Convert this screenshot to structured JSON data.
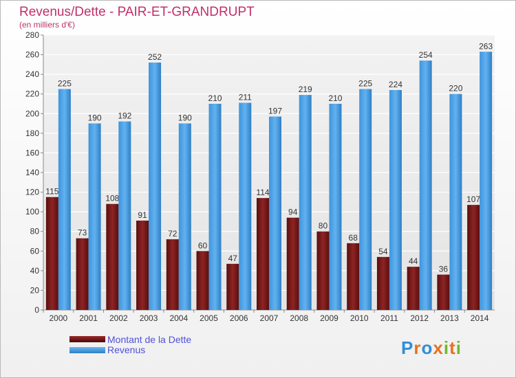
{
  "chart_data": {
    "type": "bar",
    "title": "Revenus/Dette - PAIR-ET-GRANDRUPT",
    "subtitle": "(en milliers d'€)",
    "xlabel": "",
    "ylabel": "",
    "ylim": [
      0,
      280
    ],
    "yticks": [
      0,
      20,
      40,
      60,
      80,
      100,
      120,
      140,
      160,
      180,
      200,
      220,
      240,
      260,
      280
    ],
    "grid": true,
    "categories": [
      "2000",
      "2001",
      "2002",
      "2003",
      "2004",
      "2005",
      "2006",
      "2007",
      "2008",
      "2009",
      "2010",
      "2011",
      "2012",
      "2013",
      "2014"
    ],
    "series": [
      {
        "name": "Montant de la Dette",
        "color": "#7a1a1a",
        "values": [
          115,
          73,
          108,
          91,
          72,
          60,
          47,
          114,
          94,
          80,
          68,
          54,
          44,
          36,
          107
        ]
      },
      {
        "name": "Revenus",
        "color": "#4aa0e6",
        "values": [
          225,
          190,
          192,
          252,
          190,
          210,
          211,
          197,
          219,
          210,
          225,
          224,
          254,
          220,
          263
        ]
      }
    ],
    "legend": {
      "placement": "bottom-left"
    }
  },
  "logo": {
    "text": "Proxiti",
    "letters": [
      "P",
      "r",
      "o",
      "x",
      "i",
      "t",
      "i"
    ],
    "colors": [
      "#2e8fd8",
      "#e8701e",
      "#2e8fd8",
      "#e8701e",
      "#6fb830",
      "#e8701e",
      "#6fb830"
    ]
  }
}
